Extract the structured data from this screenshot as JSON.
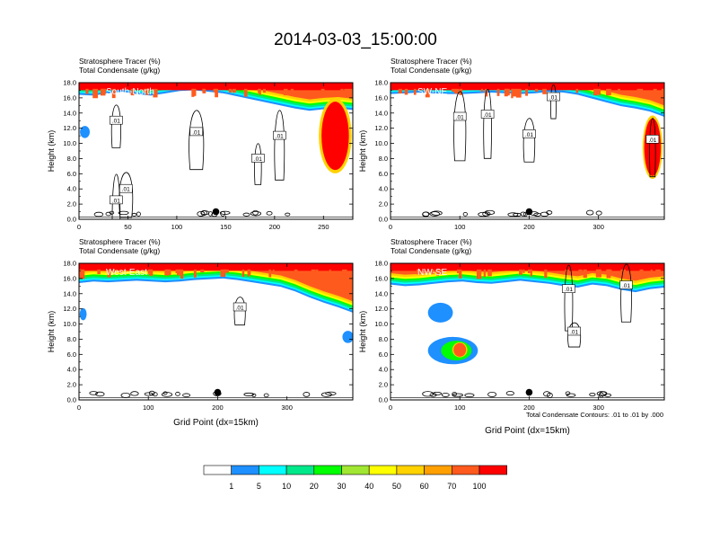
{
  "figure": {
    "title": "2014-03-03_15:00:00",
    "contour_note": "Total Condensate Contours: .01 to .01 by .000"
  },
  "colors": {
    "levels": [
      "#ffffff",
      "#1e90ff",
      "#00ffff",
      "#00e88a",
      "#00ff00",
      "#a0e632",
      "#ffff00",
      "#ffd200",
      "#ffa000",
      "#ff5a1e",
      "#ff0000"
    ],
    "contour": "#000000",
    "background": "#ffffff"
  },
  "colorbar": {
    "labels": [
      "1",
      "5",
      "10",
      "20",
      "30",
      "40",
      "50",
      "60",
      "70",
      "100"
    ]
  },
  "chart_data": [
    {
      "type": "heatmap",
      "panel_label": "South-North",
      "subtitle_line1": "Stratosphere Tracer   (%)",
      "subtitle_line2": "Total Condensate   (g/kg)",
      "ylabel": "Height (km)",
      "xlabel": "",
      "xlim": [
        0,
        280
      ],
      "ylim": [
        0,
        18
      ],
      "xticks": [
        "0",
        "50",
        "100",
        "150",
        "200",
        "250"
      ],
      "xtick_values": [
        0,
        50,
        100,
        150,
        200,
        250
      ],
      "yticks": [
        "0.0",
        "2.0",
        "4.0",
        "6.0",
        "8.0",
        "10.0",
        "12.0",
        "14.0",
        "16.0",
        "18.0"
      ],
      "tropopause_km": [
        16.4,
        16.3,
        16.6,
        16.8,
        16.5,
        16.3,
        16.6,
        16.9,
        17.0,
        16.8,
        16.6,
        16.2,
        15.8,
        15.4,
        15.0,
        14.6,
        14.3,
        14.5,
        14.6,
        14.4
      ],
      "tracer_blobs": [
        {
          "x": 6,
          "y": 11.5,
          "rx": 5,
          "ry": 0.8,
          "level": 1
        },
        {
          "x": 262,
          "y": 11.0,
          "rx": 14,
          "ry": 4.5,
          "level": 10
        }
      ],
      "contour_labels": [
        {
          "x": 38,
          "y": 13.0,
          "text": ".01"
        },
        {
          "x": 120,
          "y": 11.5,
          "text": ".01"
        },
        {
          "x": 205,
          "y": 11.0,
          "text": ".01"
        },
        {
          "x": 183,
          "y": 8.0,
          "text": ".01"
        },
        {
          "x": 48,
          "y": 4.0,
          "text": ".01"
        },
        {
          "x": 38,
          "y": 2.5,
          "text": ".01"
        }
      ],
      "marker": {
        "x": 140,
        "y": 1.0
      }
    },
    {
      "type": "heatmap",
      "panel_label": "SW-NE",
      "subtitle_line1": "Stratosphere Tracer   (%)",
      "subtitle_line2": "Total Condensate   (g/kg)",
      "ylabel": "Height (km)",
      "xlabel": "",
      "xlim": [
        0,
        395
      ],
      "ylim": [
        0,
        18
      ],
      "xticks": [
        "0",
        "100",
        "200",
        "300"
      ],
      "xtick_values": [
        0,
        100,
        200,
        300
      ],
      "yticks": [
        "0.0",
        "2.0",
        "4.0",
        "6.0",
        "8.0",
        "10.0",
        "12.0",
        "14.0",
        "16.0",
        "18.0"
      ],
      "tropopause_km": [
        16.5,
        16.6,
        16.7,
        16.6,
        16.5,
        16.5,
        16.6,
        16.7,
        16.6,
        16.5,
        16.6,
        16.8,
        16.7,
        16.4,
        15.9,
        15.4,
        14.9,
        14.6,
        14.2,
        13.5
      ],
      "tracer_blobs": [
        {
          "x": 378,
          "y": 9.5,
          "rx": 12,
          "ry": 3.8,
          "level": 10
        }
      ],
      "contour_labels": [
        {
          "x": 100,
          "y": 13.5,
          "text": ".01"
        },
        {
          "x": 140,
          "y": 13.8,
          "text": ".01"
        },
        {
          "x": 200,
          "y": 11.2,
          "text": ".01"
        },
        {
          "x": 235,
          "y": 16.1,
          "text": ".01"
        },
        {
          "x": 378,
          "y": 10.5,
          "text": ".01"
        }
      ],
      "marker": {
        "x": 200,
        "y": 1.0
      }
    },
    {
      "type": "heatmap",
      "panel_label": "West-East",
      "subtitle_line1": "Stratosphere Tracer   (%)",
      "subtitle_line2": "Total Condensate   (g/kg)",
      "ylabel": "Height (km)",
      "xlabel": "Grid Point (dx=15km)",
      "xlim": [
        0,
        395
      ],
      "ylim": [
        0,
        18
      ],
      "xticks": [
        "0",
        "100",
        "200",
        "300"
      ],
      "xtick_values": [
        0,
        100,
        200,
        300
      ],
      "yticks": [
        "0.0",
        "2.0",
        "4.0",
        "6.0",
        "8.0",
        "10.0",
        "12.0",
        "14.0",
        "16.0",
        "18.0"
      ],
      "tropopause_km": [
        15.4,
        15.6,
        15.5,
        15.6,
        15.7,
        15.6,
        15.5,
        15.6,
        15.8,
        15.9,
        16.0,
        15.8,
        15.5,
        15.2,
        14.9,
        14.3,
        13.5,
        12.8,
        12.2,
        11.5
      ],
      "tracer_blobs": [
        {
          "x": 6,
          "y": 11.3,
          "rx": 5,
          "ry": 0.8,
          "level": 1
        },
        {
          "x": 388,
          "y": 8.3,
          "rx": 8,
          "ry": 0.8,
          "level": 1
        }
      ],
      "contour_labels": [
        {
          "x": 232,
          "y": 12.2,
          "text": ".01"
        }
      ],
      "marker": {
        "x": 200,
        "y": 1.0
      }
    },
    {
      "type": "heatmap",
      "panel_label": "NW-SE",
      "subtitle_line1": "Stratosphere Tracer   (%)",
      "subtitle_line2": "Total Condensate   (g/kg)",
      "ylabel": "Height (km)",
      "xlabel": "Grid Point (dx=15km)",
      "xlim": [
        0,
        395
      ],
      "ylim": [
        0,
        18
      ],
      "xticks": [
        "0",
        "100",
        "200",
        "300"
      ],
      "xtick_values": [
        0,
        100,
        200,
        300
      ],
      "yticks": [
        "0.0",
        "2.0",
        "4.0",
        "6.0",
        "8.0",
        "10.0",
        "12.0",
        "14.0",
        "16.0",
        "18.0"
      ],
      "tropopause_km": [
        15.2,
        15.0,
        15.1,
        15.3,
        15.5,
        15.6,
        15.4,
        15.3,
        15.5,
        15.7,
        15.5,
        15.3,
        15.0,
        14.8,
        15.2,
        15.0,
        14.5,
        14.2,
        14.6,
        14.8
      ],
      "tracer_blobs": [
        {
          "x": 72,
          "y": 11.5,
          "rx": 18,
          "ry": 1.3,
          "level": 1
        },
        {
          "x": 90,
          "y": 6.5,
          "rx": 36,
          "ry": 1.8,
          "level": 1
        },
        {
          "x": 95,
          "y": 6.5,
          "rx": 22,
          "ry": 1.3,
          "level": 4
        },
        {
          "x": 100,
          "y": 6.6,
          "rx": 9,
          "ry": 0.9,
          "level": 9
        }
      ],
      "contour_labels": [
        {
          "x": 257,
          "y": 14.6,
          "text": ".01"
        },
        {
          "x": 340,
          "y": 15.1,
          "text": ".01"
        },
        {
          "x": 265,
          "y": 9.0,
          "text": ".01"
        }
      ],
      "marker": {
        "x": 200,
        "y": 1.0
      }
    }
  ]
}
